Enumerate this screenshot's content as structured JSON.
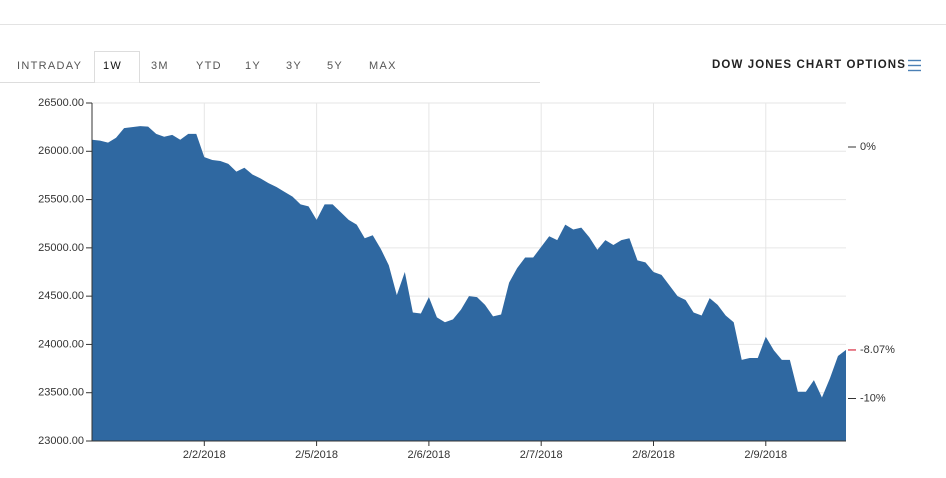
{
  "tabs": [
    "INTRADAY",
    "1W",
    "3M",
    "YTD",
    "1Y",
    "3Y",
    "5Y",
    "MAX"
  ],
  "selected_tab": "1W",
  "options_label": "DOW JONES CHART OPTIONS",
  "chart_data": {
    "type": "area",
    "color": "#2f68a1",
    "categories": [
      null,
      null,
      null,
      null,
      null,
      null,
      null,
      null,
      null,
      null,
      null,
      null,
      null,
      null,
      "2/2/2018",
      null,
      null,
      null,
      null,
      null,
      null,
      null,
      null,
      null,
      null,
      null,
      null,
      null,
      "2/5/2018",
      null,
      null,
      null,
      null,
      null,
      null,
      null,
      null,
      null,
      null,
      null,
      null,
      null,
      "2/6/2018",
      null,
      null,
      null,
      null,
      null,
      null,
      null,
      null,
      null,
      null,
      null,
      null,
      null,
      "2/7/2018",
      null,
      null,
      null,
      null,
      null,
      null,
      null,
      null,
      null,
      null,
      null,
      null,
      null,
      "2/8/2018",
      null,
      null,
      null,
      null,
      null,
      null,
      null,
      null,
      null,
      null,
      null,
      null,
      null,
      "2/9/2018",
      null,
      null,
      null,
      null,
      null,
      null,
      null,
      null,
      null,
      null
    ],
    "values": [
      26120,
      26110,
      26090,
      26140,
      26240,
      26250,
      26260,
      26255,
      26180,
      26150,
      26170,
      26120,
      26180,
      26180,
      25940,
      25910,
      25900,
      25870,
      25790,
      25830,
      25760,
      25720,
      25670,
      25630,
      25580,
      25530,
      25450,
      25430,
      25290,
      25450,
      25450,
      25370,
      25290,
      25240,
      25100,
      25130,
      24990,
      24820,
      24510,
      24750,
      24330,
      24320,
      24490,
      24280,
      24230,
      24260,
      24360,
      24500,
      24490,
      24410,
      24290,
      24310,
      24640,
      24790,
      24900,
      24900,
      25010,
      25120,
      25080,
      25240,
      25190,
      25210,
      25110,
      24980,
      25080,
      25030,
      25080,
      25100,
      24870,
      24850,
      24750,
      24720,
      24610,
      24500,
      24460,
      24330,
      24300,
      24480,
      24410,
      24300,
      24230,
      23840,
      23860,
      23860,
      24080,
      23940,
      23840,
      23840,
      23510,
      23510,
      23630,
      23450,
      23650,
      23880,
      23943
    ],
    "ylim": [
      23000,
      26500
    ],
    "yticks": [
      {
        "value": 23000,
        "label": "23000.00"
      },
      {
        "value": 23500,
        "label": "23500.00"
      },
      {
        "value": 24000,
        "label": "24000.00"
      },
      {
        "value": 24500,
        "label": "24500.00"
      },
      {
        "value": 25000,
        "label": "25000.00"
      },
      {
        "value": 25500,
        "label": "25500.00"
      },
      {
        "value": 26000,
        "label": "26000.00"
      },
      {
        "value": 26500,
        "label": "26500.00"
      }
    ],
    "y2lim": [
      -11.69,
      1.75
    ],
    "y2ticks": [
      {
        "value": 0,
        "label": "0%"
      },
      {
        "value": -10,
        "label": "-10%"
      }
    ],
    "last_change": {
      "value": -8.07,
      "label": "-8.07%",
      "color": "#d0021b"
    },
    "grid": true
  }
}
